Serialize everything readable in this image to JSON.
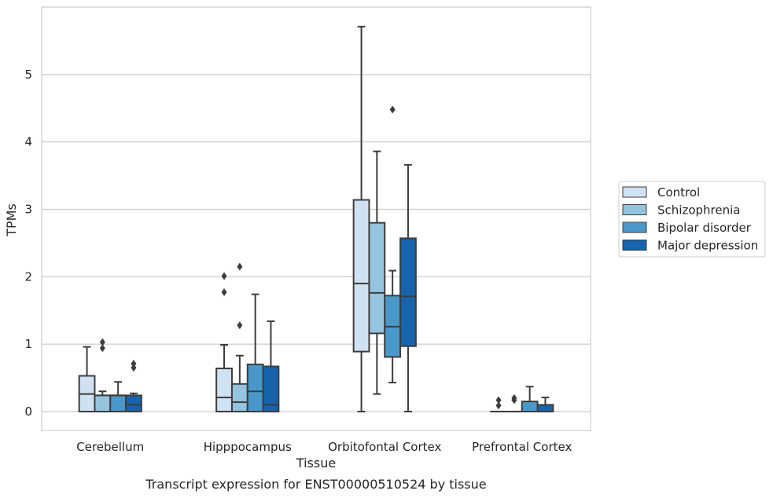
{
  "caption": "Transcript expression for ENST00000510524 by tissue",
  "chart_data": {
    "type": "box",
    "xlabel": "Tissue",
    "ylabel": "TPMs",
    "ylim": [
      -0.28,
      6.0
    ],
    "yticks": [
      0,
      1,
      2,
      3,
      4,
      5
    ],
    "grid": true,
    "legend_position": "right",
    "categories": [
      "Cerebellum",
      "Hipppocampus",
      "Orbitofontal Cortex",
      "Prefrontal Cortex"
    ],
    "series": [
      {
        "name": "Control",
        "color": "#d0e1f2",
        "boxes": [
          {
            "whislo": 0,
            "q1": 0,
            "med": 0.26,
            "q3": 0.53,
            "whishi": 0.96,
            "fliers": []
          },
          {
            "whislo": 0,
            "q1": 0,
            "med": 0.21,
            "q3": 0.64,
            "whishi": 0.99,
            "fliers": [
              1.77,
              2.01
            ]
          },
          {
            "whislo": 0,
            "q1": 0.89,
            "med": 1.9,
            "q3": 3.14,
            "whishi": 5.71,
            "fliers": []
          },
          {
            "whislo": 0,
            "q1": 0,
            "med": 0,
            "q3": 0,
            "whishi": 0,
            "fliers": [
              0.09,
              0.17
            ]
          }
        ]
      },
      {
        "name": "Schizophrenia",
        "color": "#94c4df",
        "boxes": [
          {
            "whislo": 0,
            "q1": 0,
            "med": 0.24,
            "q3": 0.24,
            "whishi": 0.3,
            "fliers": [
              0.94,
              1.03
            ]
          },
          {
            "whislo": 0,
            "q1": 0,
            "med": 0.14,
            "q3": 0.41,
            "whishi": 0.83,
            "fliers": [
              1.28,
              2.15
            ]
          },
          {
            "whislo": 0.26,
            "q1": 1.16,
            "med": 1.76,
            "q3": 2.8,
            "whishi": 3.86,
            "fliers": []
          },
          {
            "whislo": 0,
            "q1": 0,
            "med": 0,
            "q3": 0,
            "whishi": 0,
            "fliers": [
              0.17,
              0.2
            ]
          }
        ]
      },
      {
        "name": "Bipolar disorder",
        "color": "#4a98c9",
        "boxes": [
          {
            "whislo": 0,
            "q1": 0,
            "med": 0.24,
            "q3": 0.24,
            "whishi": 0.44,
            "fliers": []
          },
          {
            "whislo": 0,
            "q1": 0,
            "med": 0.3,
            "q3": 0.7,
            "whishi": 1.74,
            "fliers": []
          },
          {
            "whislo": 0.43,
            "q1": 0.81,
            "med": 1.26,
            "q3": 1.72,
            "whishi": 2.09,
            "fliers": [
              4.48
            ]
          },
          {
            "whislo": 0,
            "q1": 0,
            "med": 0,
            "q3": 0.15,
            "whishi": 0.37,
            "fliers": []
          }
        ]
      },
      {
        "name": "Major depression",
        "color": "#1764ab",
        "boxes": [
          {
            "whislo": 0,
            "q1": 0,
            "med": 0.1,
            "q3": 0.24,
            "whishi": 0.27,
            "fliers": [
              0.65,
              0.71
            ]
          },
          {
            "whislo": 0,
            "q1": 0,
            "med": 0.1,
            "q3": 0.67,
            "whishi": 1.34,
            "fliers": []
          },
          {
            "whislo": 0,
            "q1": 0.97,
            "med": 1.71,
            "q3": 2.57,
            "whishi": 3.66,
            "fliers": []
          },
          {
            "whislo": 0,
            "q1": 0,
            "med": 0,
            "q3": 0.1,
            "whishi": 0.21,
            "fliers": []
          }
        ]
      }
    ]
  }
}
